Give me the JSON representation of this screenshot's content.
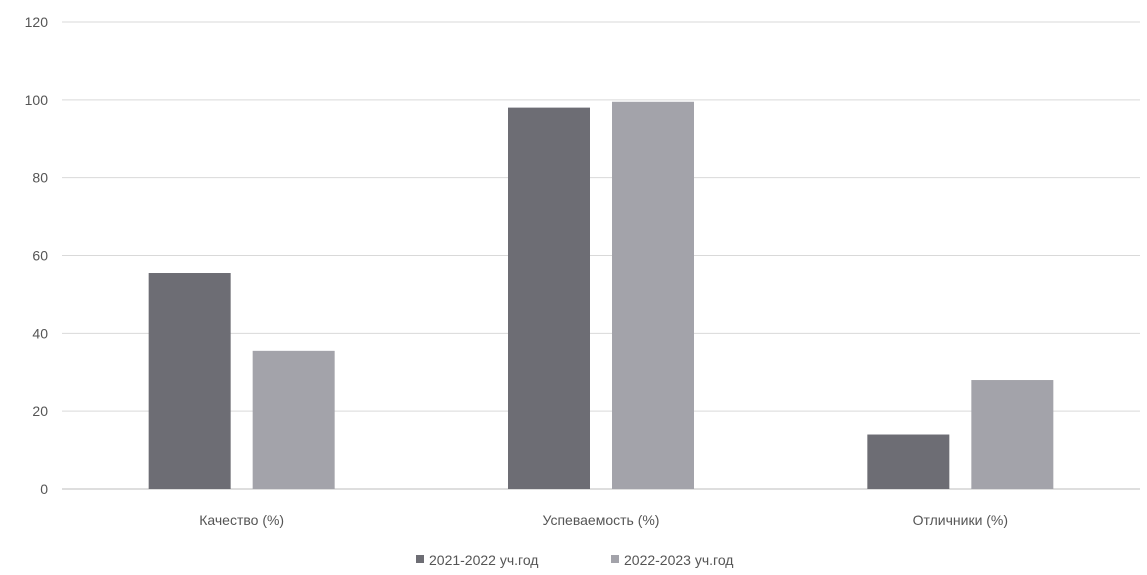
{
  "chart_data": {
    "type": "bar",
    "title": "",
    "xlabel": "",
    "ylabel": "",
    "ylim": [
      0,
      120
    ],
    "yticks": [
      0,
      20,
      40,
      60,
      80,
      100,
      120
    ],
    "grid": true,
    "legend_position": "bottom",
    "categories": [
      "Качество (%)",
      "Успеваемость (%)",
      "Отличники (%)"
    ],
    "series": [
      {
        "name": "2021-2022 уч.год",
        "color": "#6d6d74",
        "values": [
          55.5,
          98,
          14
        ]
      },
      {
        "name": "2022-2023 уч.год",
        "color": "#a3a3aa",
        "values": [
          35.5,
          99.5,
          28
        ]
      }
    ]
  }
}
